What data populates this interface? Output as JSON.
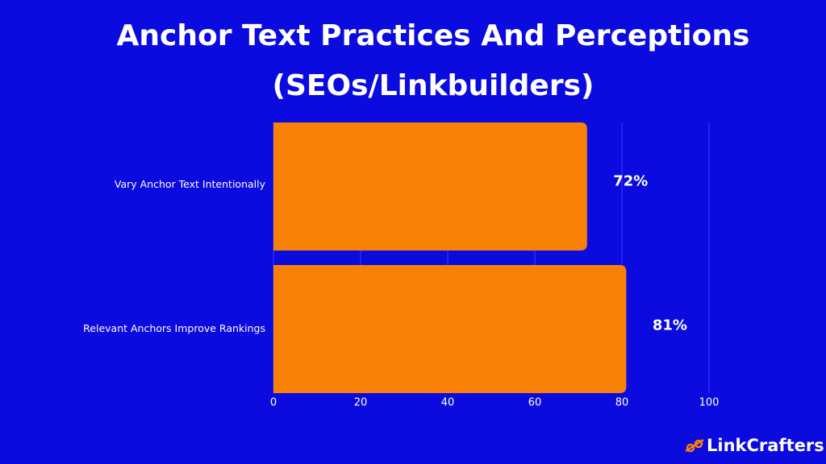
{
  "chart_data": {
    "type": "barh",
    "title": "Anchor Text Practices And Perceptions (SEOs/Linkbuilders)",
    "categories": [
      "Vary Anchor Text Intentionally",
      "Relevant Anchors Improve Rankings"
    ],
    "values": [
      72,
      81
    ],
    "value_labels": [
      "72%",
      "81%"
    ],
    "color": "#f98107",
    "xlim": [
      0,
      100
    ],
    "xticks": [
      0,
      20,
      40,
      60,
      80,
      100
    ],
    "grid": true
  },
  "brand": "LinkCrafters"
}
